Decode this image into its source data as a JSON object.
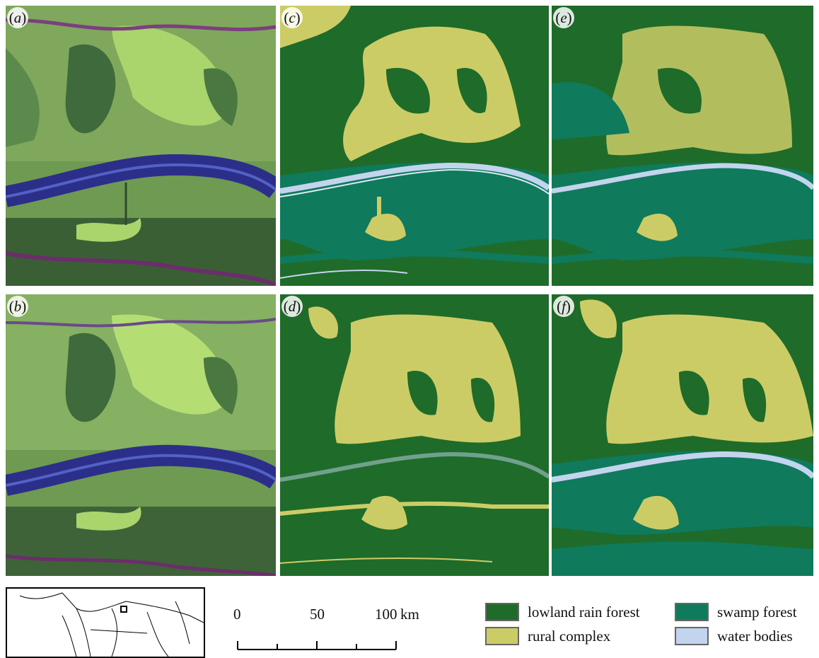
{
  "panels": {
    "a": {
      "label": "a"
    },
    "b": {
      "label": "b"
    },
    "c": {
      "label": "c"
    },
    "d": {
      "label": "d"
    },
    "e": {
      "label": "e"
    },
    "f": {
      "label": "f"
    }
  },
  "scale_bar": {
    "ticks": [
      "0",
      "50",
      "100"
    ],
    "unit": "km"
  },
  "legend": {
    "items": [
      {
        "label": "lowland rain forest",
        "color": "#1f6b2a"
      },
      {
        "label": "swamp forest",
        "color": "#0f7a5c"
      },
      {
        "label": "rural complex",
        "color": "#cccc66"
      },
      {
        "label": "water bodies",
        "color": "#c3d4ee"
      }
    ]
  },
  "colors": {
    "lowland_rain_forest": "#1f6b2a",
    "swamp_forest": "#0f7a5c",
    "rural_complex": "#cccc66",
    "water_bodies": "#c3d4ee",
    "satellite_river": "#2b2f8a",
    "satellite_bright": "#a8d86a",
    "satellite_dark": "#3e6a3c"
  }
}
